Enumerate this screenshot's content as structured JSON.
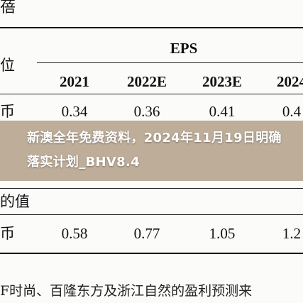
{
  "table": {
    "corner_top": "蓓",
    "corner_left": "位",
    "eps_header": "EPS",
    "years": [
      "2021",
      "2022E",
      "2023E",
      "2024"
    ],
    "row1_label": "币",
    "row1_values": [
      "0.34",
      "0.36",
      "0.41",
      "0.4"
    ],
    "row2_label": "币",
    "row2_values": [
      "0.58",
      "0.77",
      "1.05",
      "1.2"
    ],
    "section_label": "的值",
    "footnote": "F时尚、百隆东方及浙江自然的盈利预测来"
  },
  "banner": {
    "title": "新澳全年免费资料，2024年11月19日明确落实计划_BHV8.4"
  }
}
